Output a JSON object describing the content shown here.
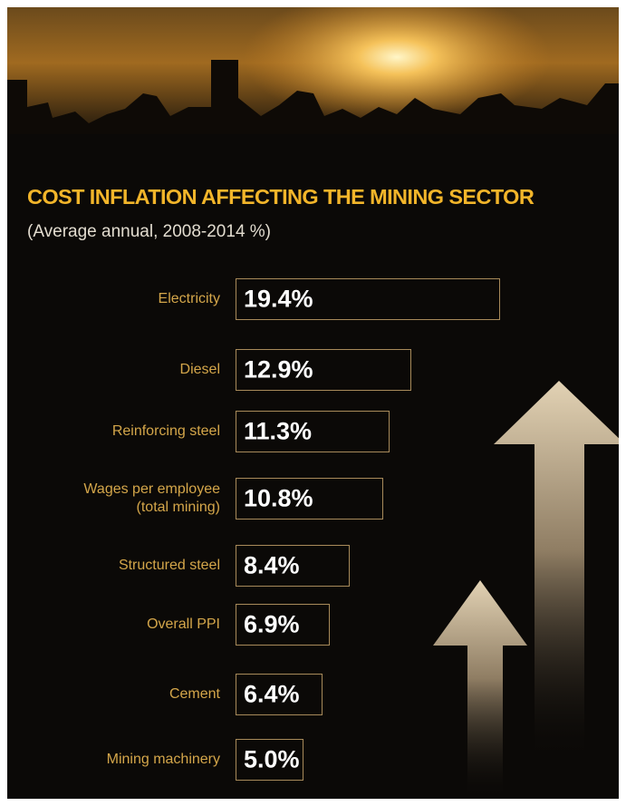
{
  "chart_data": {
    "type": "bar",
    "title": "COST INFLATION AFFECTING THE MINING SECTOR",
    "subtitle": "(Average annual, 2008-2014 %)",
    "categories": [
      "Electricity",
      "Diesel",
      "Reinforcing steel",
      "Wages per employee (total mining)",
      "Structured steel",
      "Overall PPI",
      "Cement",
      "Mining machinery"
    ],
    "values": [
      19.4,
      12.9,
      11.3,
      10.8,
      8.4,
      6.9,
      6.4,
      5.0
    ],
    "value_labels": [
      "19.4%",
      "12.9%",
      "11.3%",
      "10.8%",
      "8.4%",
      "6.9%",
      "6.4%",
      "5.0%"
    ],
    "color": "#a88a5a"
  }
}
